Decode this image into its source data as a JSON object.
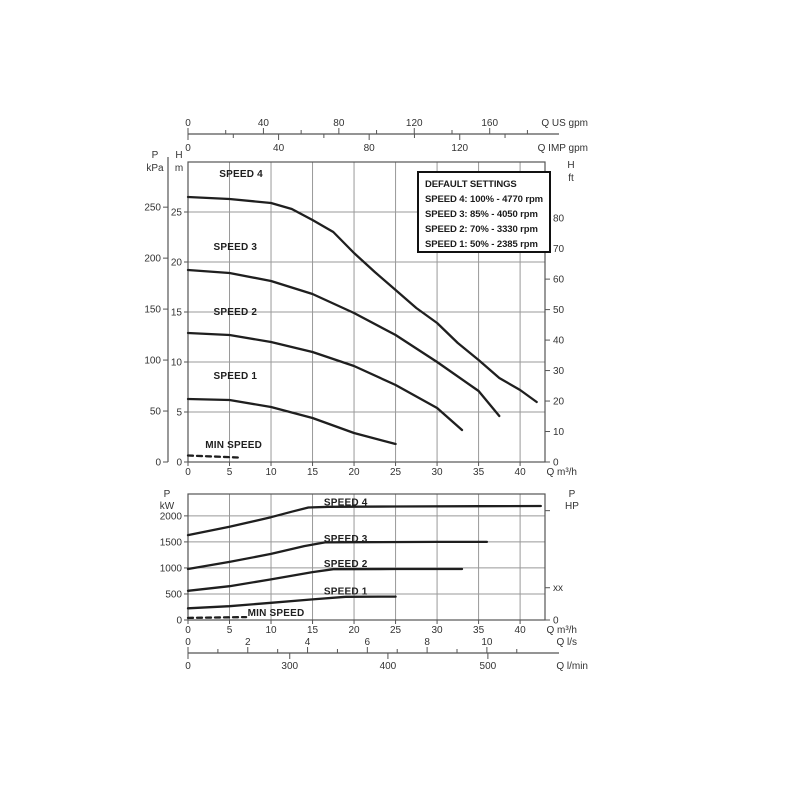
{
  "figure": {
    "colors": {
      "bg": "#ffffff",
      "ink": "#1f1f1f",
      "grid": "#999999",
      "axis": "#555555",
      "text": "#333333",
      "box_border": "#111111"
    }
  },
  "default_settings": {
    "title": "DEFAULT SETTINGS",
    "lines": [
      "SPEED 4: 100% - 4770 rpm",
      "SPEED 3:  85% - 4050 rpm",
      "SPEED 2:  70% - 3330 rpm",
      "SPEED 1:  50% - 2385 rpm"
    ]
  },
  "chart_data": [
    {
      "id": "head-chart",
      "type": "line",
      "x_axis": {
        "label": "Q m³/h",
        "min": 0,
        "max": 43,
        "ticks": [
          0,
          5,
          10,
          15,
          20,
          25,
          30,
          35,
          40
        ]
      },
      "y_axis": {
        "label_lines": [
          "H",
          "m"
        ],
        "min": 0,
        "max": 30,
        "ticks": [
          0,
          5,
          10,
          15,
          20,
          25
        ]
      },
      "y_axis_secondary": {
        "label_lines": [
          "P",
          "kPa"
        ],
        "ticks": [
          0,
          50,
          100,
          150,
          200,
          250
        ],
        "kpa_per_m": 9.81
      },
      "y_axis_right": {
        "label_lines": [
          "H",
          "ft"
        ],
        "ticks": [
          0,
          10,
          20,
          30,
          40,
          50,
          60,
          70,
          80
        ],
        "ft_per_m": 3.2808
      },
      "top_scales": [
        {
          "label": "Q US gpm",
          "ticks": [
            0,
            40,
            80,
            120,
            160
          ],
          "minor_ticks": [
            20,
            60,
            100,
            140,
            180
          ],
          "m3h_per_unit": 0.22712
        },
        {
          "label": "Q IMP gpm",
          "ticks": [
            0,
            40,
            80,
            120
          ],
          "minor_ticks": [
            20,
            60,
            100,
            140
          ],
          "m3h_per_unit": 0.27276
        }
      ],
      "series": [
        {
          "name": "SPEED 4",
          "dashed": false,
          "label_at": [
            6.4,
            28.8
          ],
          "points": [
            [
              0,
              26.5
            ],
            [
              5,
              26.3
            ],
            [
              10,
              25.9
            ],
            [
              12.5,
              25.3
            ],
            [
              15,
              24.2
            ],
            [
              17.5,
              23.0
            ],
            [
              20,
              20.9
            ],
            [
              22.5,
              19.0
            ],
            [
              25,
              17.2
            ],
            [
              27.5,
              15.4
            ],
            [
              30,
              13.9
            ],
            [
              32.5,
              11.9
            ],
            [
              35,
              10.2
            ],
            [
              37.5,
              8.4
            ],
            [
              40,
              7.2
            ],
            [
              42,
              6.0
            ]
          ]
        },
        {
          "name": "SPEED 3",
          "dashed": false,
          "label_at": [
            5.7,
            21.5
          ],
          "points": [
            [
              0,
              19.2
            ],
            [
              5,
              18.9
            ],
            [
              10,
              18.1
            ],
            [
              15,
              16.8
            ],
            [
              20,
              14.9
            ],
            [
              25,
              12.7
            ],
            [
              30,
              10.0
            ],
            [
              35,
              7.1
            ],
            [
              37.5,
              4.6
            ]
          ]
        },
        {
          "name": "SPEED 2",
          "dashed": false,
          "label_at": [
            5.7,
            15.0
          ],
          "points": [
            [
              0,
              12.9
            ],
            [
              5,
              12.7
            ],
            [
              10,
              12.0
            ],
            [
              15,
              11.0
            ],
            [
              20,
              9.6
            ],
            [
              25,
              7.7
            ],
            [
              30,
              5.4
            ],
            [
              33,
              3.2
            ]
          ]
        },
        {
          "name": "SPEED 1",
          "dashed": false,
          "label_at": [
            5.7,
            8.6
          ],
          "points": [
            [
              0,
              6.3
            ],
            [
              5,
              6.2
            ],
            [
              10,
              5.5
            ],
            [
              15,
              4.4
            ],
            [
              20,
              2.9
            ],
            [
              25,
              1.8
            ]
          ]
        },
        {
          "name": "MIN SPEED",
          "dashed": true,
          "label_at": [
            5.5,
            1.7
          ],
          "points": [
            [
              0,
              0.65
            ],
            [
              6,
              0.45
            ]
          ]
        }
      ]
    },
    {
      "id": "power-chart",
      "type": "line",
      "x_axis": {
        "label": "Q m³/h",
        "min": 0,
        "max": 43,
        "ticks": [
          0,
          5,
          10,
          15,
          20,
          25,
          30,
          35,
          40
        ]
      },
      "y_axis": {
        "label_lines": [
          "P",
          "kW"
        ],
        "min": 0,
        "max": 2420,
        "ticks": [
          0,
          500,
          1000,
          1500,
          2000
        ]
      },
      "y_axis_right": {
        "label_lines": [
          "P",
          "HP"
        ],
        "ticks": [
          {
            "value": 2100,
            "label": ""
          },
          {
            "value": 620,
            "label": "xx"
          },
          {
            "value": 0,
            "label": "0"
          }
        ]
      },
      "bottom_scales": [
        {
          "label": "Q l/s",
          "side": "above",
          "ticks": [
            0,
            2,
            4,
            6,
            8,
            10
          ],
          "minor_ticks": [
            1,
            3,
            5,
            7,
            9,
            11
          ],
          "m3h_per_unit": 3.6
        },
        {
          "label": "Q l/min",
          "side": "below",
          "ticks_frac": [
            [
              0,
              "0"
            ],
            [
              0.285,
              "300"
            ],
            [
              0.56,
              "400"
            ],
            [
              0.84,
              "500"
            ]
          ]
        }
      ],
      "series": [
        {
          "name": "SPEED 4",
          "dashed": false,
          "label_at": [
            19,
            2260
          ],
          "points": [
            [
              0,
              1630
            ],
            [
              5,
              1790
            ],
            [
              10,
              1975
            ],
            [
              12.5,
              2080
            ],
            [
              14.5,
              2160
            ],
            [
              17,
              2175
            ],
            [
              25,
              2180
            ],
            [
              35,
              2185
            ],
            [
              42.5,
              2190
            ]
          ]
        },
        {
          "name": "SPEED 3",
          "dashed": false,
          "label_at": [
            19,
            1560
          ],
          "points": [
            [
              0,
              980
            ],
            [
              5,
              1115
            ],
            [
              10,
              1270
            ],
            [
              14,
              1420
            ],
            [
              16.5,
              1490
            ],
            [
              20,
              1495
            ],
            [
              30,
              1500
            ],
            [
              36,
              1500
            ]
          ]
        },
        {
          "name": "SPEED 2",
          "dashed": false,
          "label_at": [
            19,
            1080
          ],
          "points": [
            [
              0,
              560
            ],
            [
              5,
              650
            ],
            [
              10,
              780
            ],
            [
              15,
              920
            ],
            [
              17.5,
              975
            ],
            [
              25,
              980
            ],
            [
              33,
              980
            ]
          ]
        },
        {
          "name": "SPEED 1",
          "dashed": false,
          "label_at": [
            19,
            545
          ],
          "points": [
            [
              0,
              225
            ],
            [
              5,
              265
            ],
            [
              10,
              330
            ],
            [
              15,
              395
            ],
            [
              19,
              445
            ],
            [
              25,
              450
            ]
          ]
        },
        {
          "name": "MIN SPEED",
          "dashed": true,
          "label_at": [
            10.6,
            130
          ],
          "points": [
            [
              0,
              40
            ],
            [
              7,
              55
            ]
          ]
        }
      ]
    }
  ]
}
